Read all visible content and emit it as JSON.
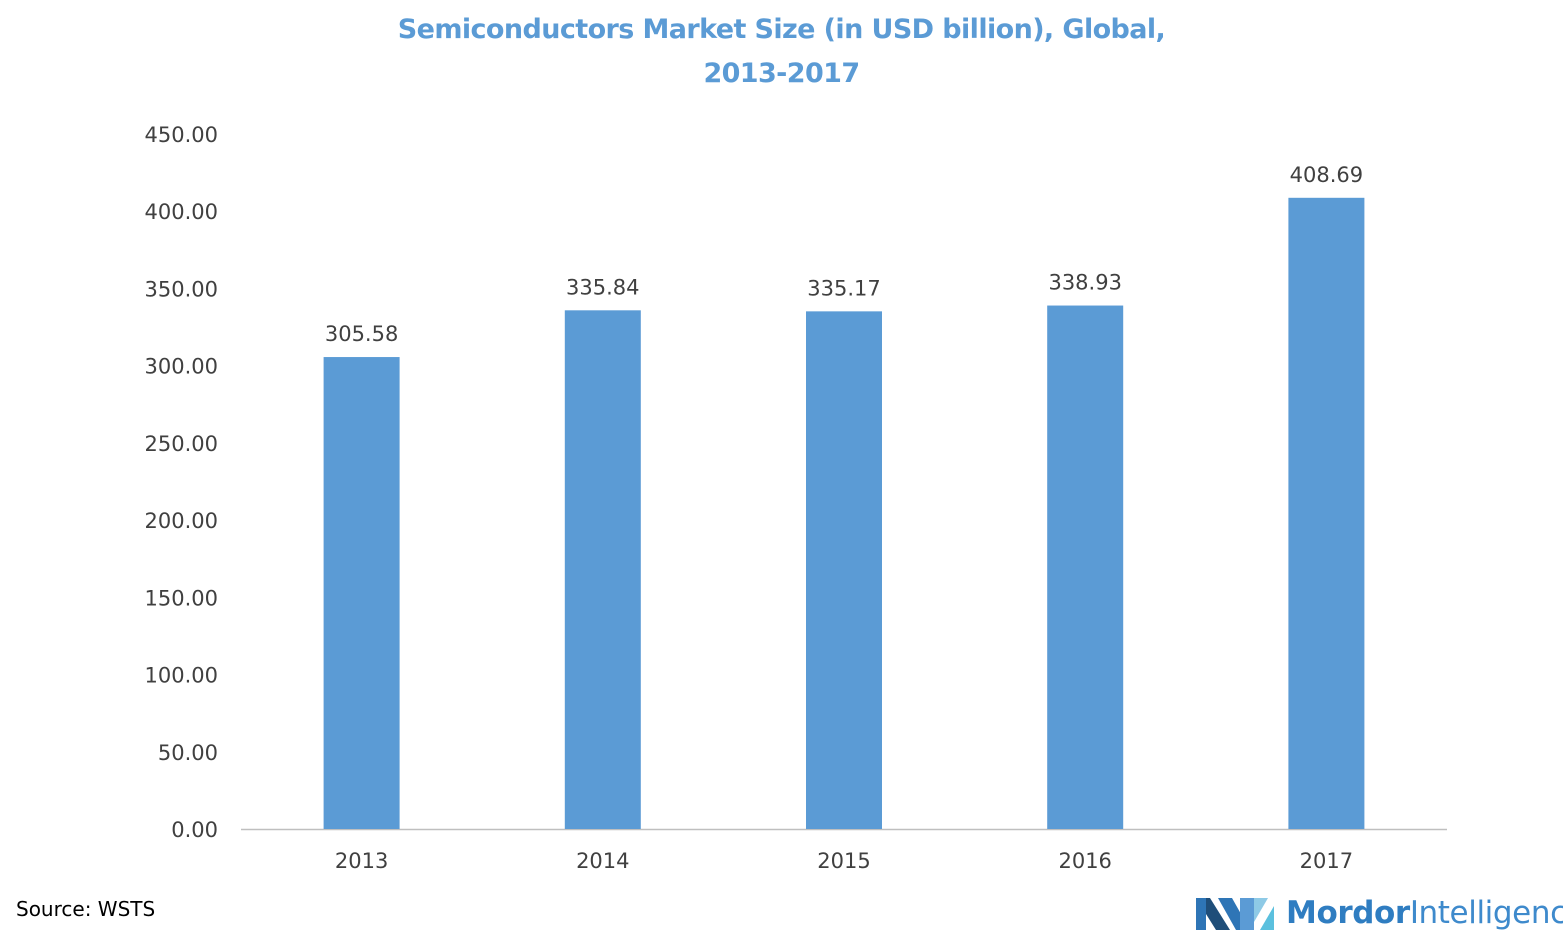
{
  "chart_data": {
    "type": "bar",
    "title_lines": [
      "Semiconductors Market Size (in USD billion), Global,",
      "2013-2017"
    ],
    "categories": [
      "2013",
      "2014",
      "2015",
      "2016",
      "2017"
    ],
    "values": [
      305.58,
      335.84,
      335.17,
      338.93,
      408.69
    ],
    "data_labels": [
      "305.58",
      "335.84",
      "335.17",
      "338.93",
      "408.69"
    ],
    "ylim": [
      0,
      450
    ],
    "y_ticks": [
      "0.00",
      "50.00",
      "100.00",
      "150.00",
      "200.00",
      "250.00",
      "300.00",
      "350.00",
      "400.00",
      "450.00"
    ],
    "grid": false,
    "legend": "none",
    "bar_color": "#5B9BD5"
  },
  "source_text": "Source: WSTS",
  "brand": {
    "name_bold": "Mordor",
    "name_light": "Intelligence",
    "colors": [
      "#1F4E79",
      "#2E75B6",
      "#5B9BD5",
      "#8ECAE6"
    ]
  },
  "title_color": "#5B9BD5"
}
